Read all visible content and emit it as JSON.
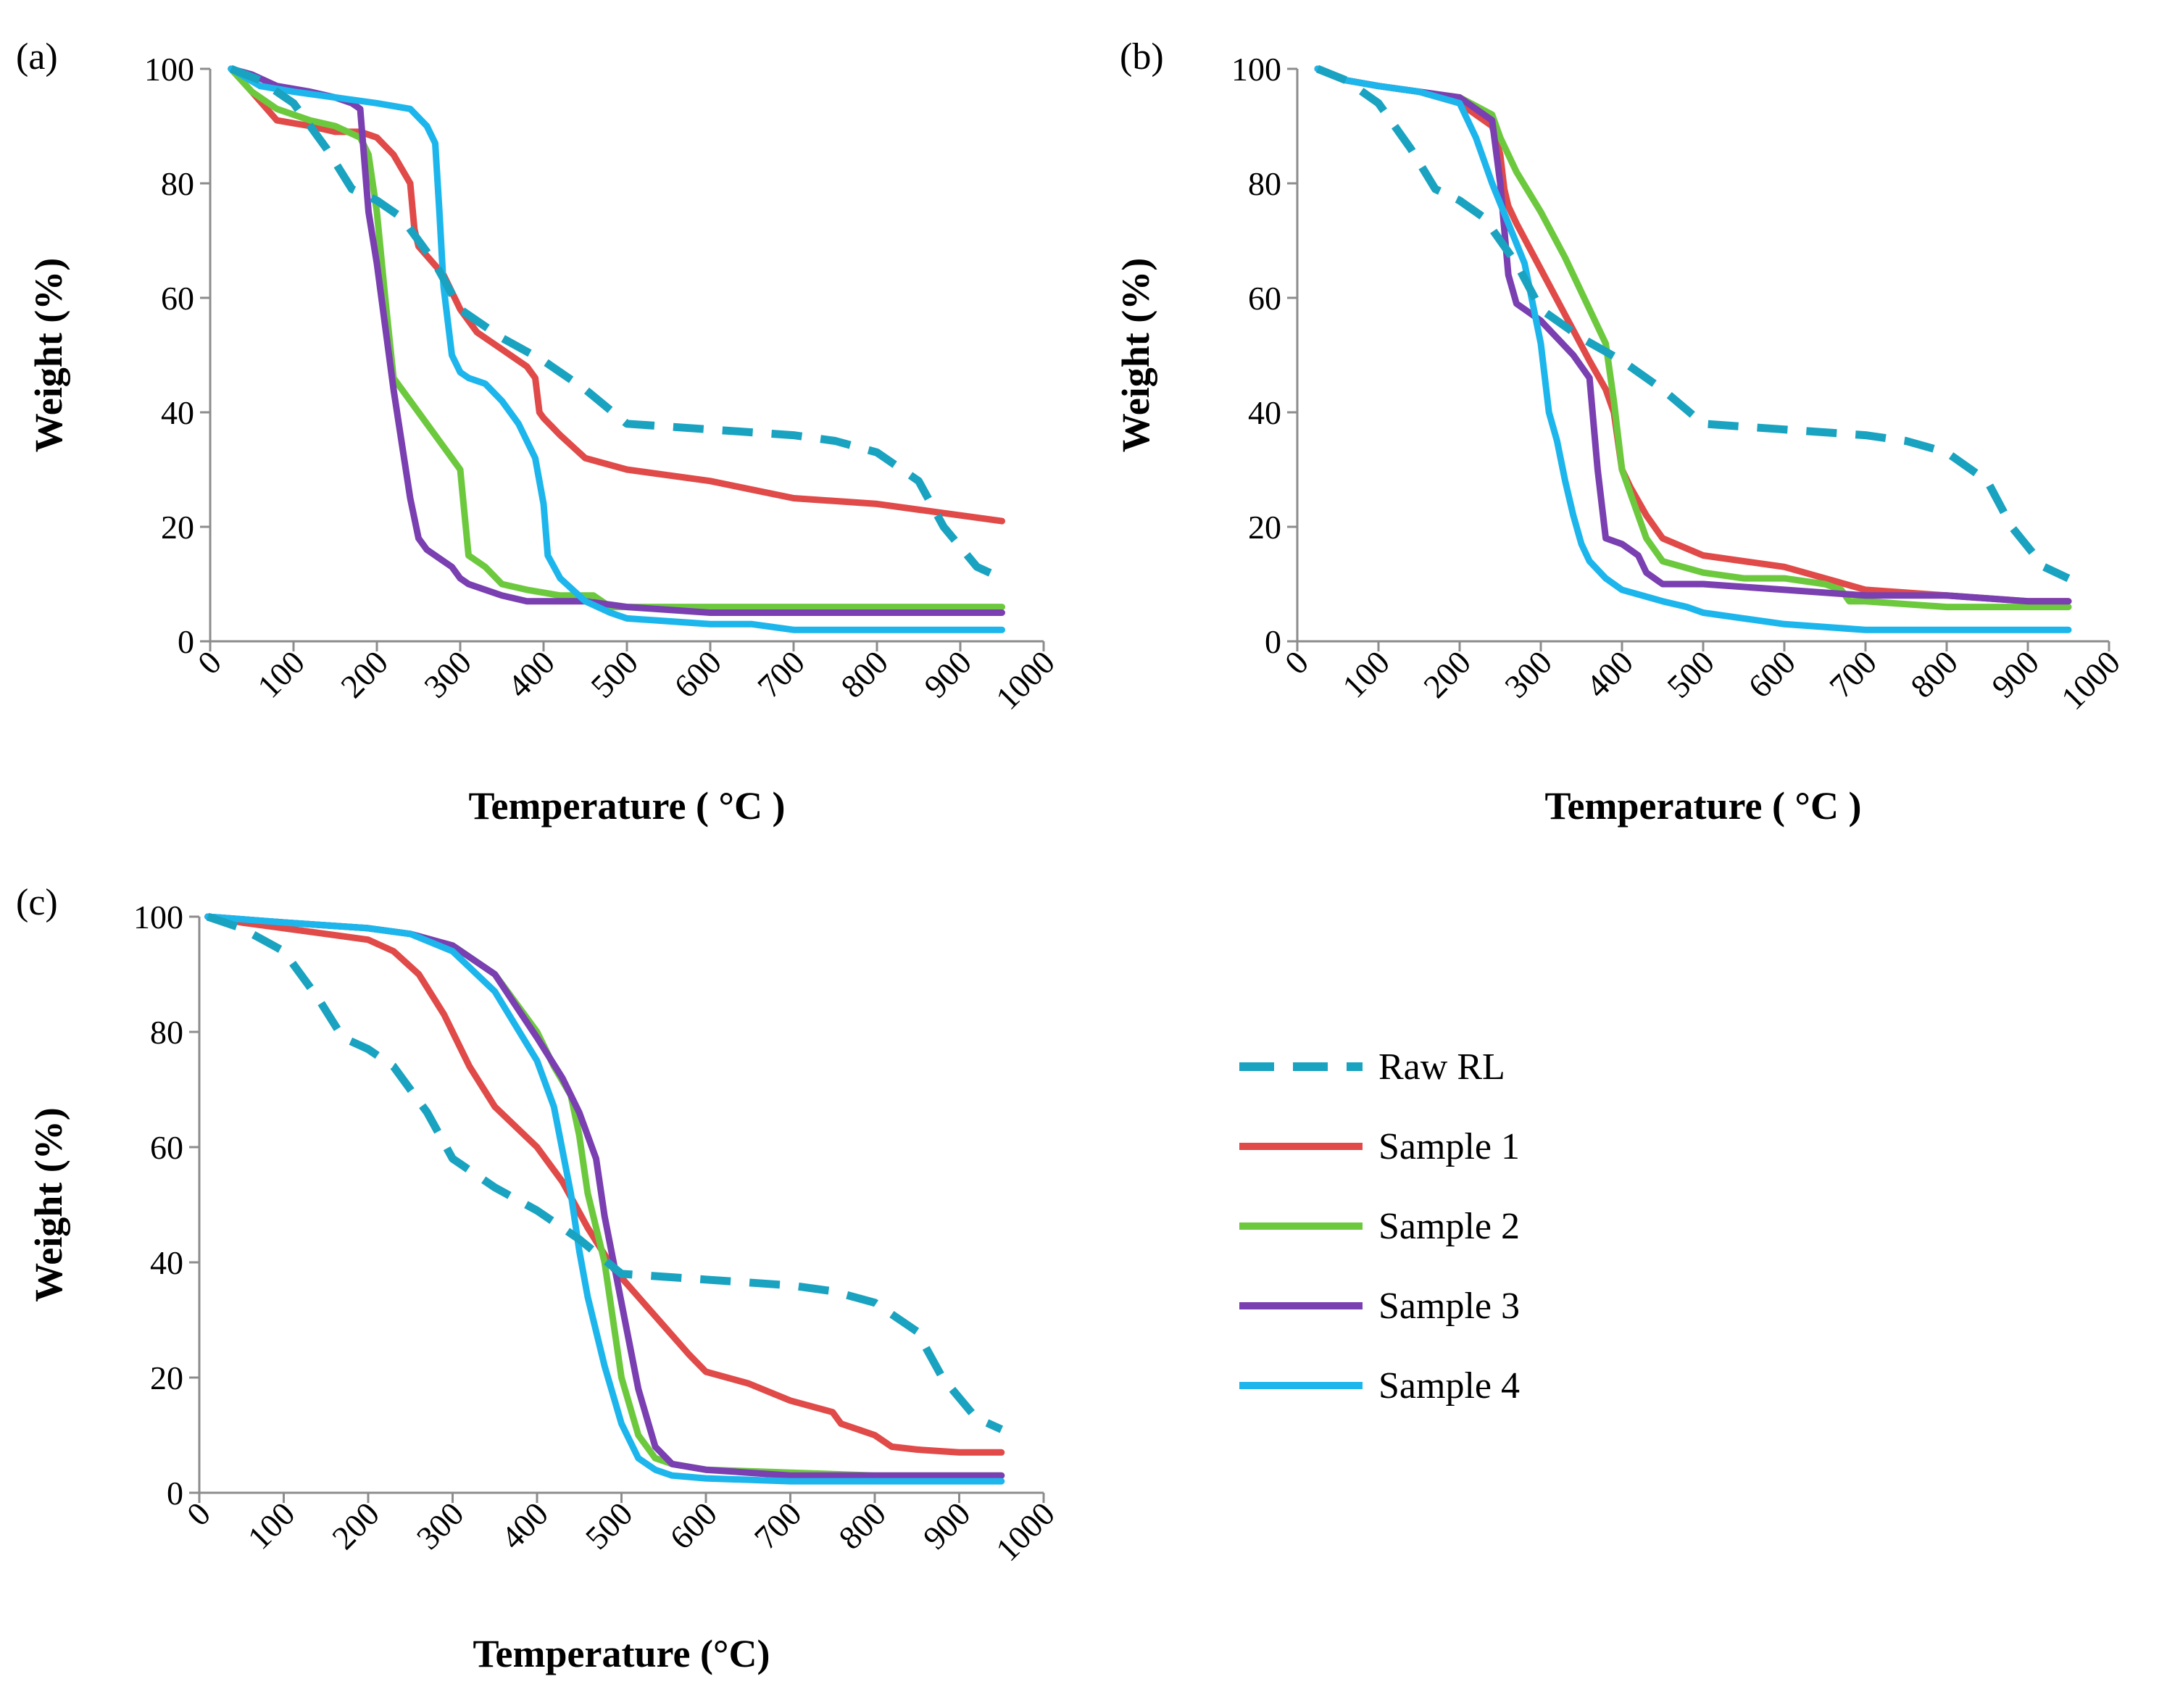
{
  "figure": {
    "legend": [
      {
        "name": "Raw RL",
        "color": "#1aa3c0",
        "dash": true
      },
      {
        "name": "Sample 1",
        "color": "#e04a48",
        "dash": false
      },
      {
        "name": "Sample 2",
        "color": "#6cc93d",
        "dash": false
      },
      {
        "name": "Sample 3",
        "color": "#7a3fb0",
        "dash": false
      },
      {
        "name": "Sample 4",
        "color": "#1cb6ec",
        "dash": false
      }
    ]
  },
  "chart_data": [
    {
      "id": "a",
      "panel_label": "(a)",
      "type": "line",
      "xlabel": "Temperature ( °C )",
      "ylabel": "Weight (%)",
      "xlim": [
        0,
        1000
      ],
      "ylim": [
        0,
        100
      ],
      "xticks": [
        "0",
        "100",
        "200",
        "300",
        "400",
        "500",
        "600",
        "700",
        "800",
        "900",
        "1000"
      ],
      "yticks": [
        "0",
        "20",
        "40",
        "60",
        "80",
        "100"
      ],
      "series": [
        {
          "name": "Raw RL",
          "x": [
            25,
            60,
            100,
            140,
            170,
            200,
            230,
            270,
            300,
            350,
            400,
            450,
            500,
            600,
            700,
            750,
            800,
            850,
            880,
            920,
            950
          ],
          "y": [
            100,
            98,
            94,
            86,
            79,
            77,
            74,
            66,
            58,
            53,
            49,
            44,
            38,
            37,
            36,
            35,
            33,
            28,
            20,
            13,
            11
          ]
        },
        {
          "name": "Sample 1",
          "x": [
            25,
            50,
            80,
            120,
            150,
            180,
            200,
            220,
            240,
            245,
            250,
            280,
            300,
            320,
            350,
            380,
            390,
            395,
            400,
            420,
            450,
            500,
            600,
            700,
            800,
            900,
            950
          ],
          "y": [
            100,
            96,
            91,
            90,
            89,
            89,
            88,
            85,
            80,
            72,
            69,
            64,
            58,
            54,
            51,
            48,
            46,
            40,
            39,
            36,
            32,
            30,
            28,
            25,
            24,
            22,
            21
          ]
        },
        {
          "name": "Sample 2",
          "x": [
            25,
            50,
            80,
            120,
            150,
            180,
            190,
            200,
            210,
            220,
            240,
            260,
            280,
            300,
            310,
            330,
            350,
            380,
            420,
            460,
            470,
            480,
            500,
            600,
            700,
            800,
            900,
            950
          ],
          "y": [
            100,
            96,
            93,
            91,
            90,
            88,
            85,
            75,
            60,
            46,
            42,
            38,
            34,
            30,
            15,
            13,
            10,
            9,
            8,
            8,
            7,
            6,
            6,
            6,
            6,
            6,
            6,
            6
          ]
        },
        {
          "name": "Sample 3",
          "x": [
            25,
            50,
            80,
            120,
            150,
            170,
            180,
            190,
            200,
            210,
            220,
            240,
            250,
            260,
            280,
            290,
            300,
            310,
            330,
            350,
            380,
            400,
            450,
            500,
            600,
            700,
            800,
            900,
            950
          ],
          "y": [
            100,
            99,
            97,
            96,
            95,
            94,
            93,
            75,
            66,
            55,
            44,
            25,
            18,
            16,
            14,
            13,
            11,
            10,
            9,
            8,
            7,
            7,
            7,
            6,
            5,
            5,
            5,
            5,
            5
          ]
        },
        {
          "name": "Sample 4",
          "x": [
            25,
            60,
            100,
            150,
            200,
            240,
            260,
            270,
            275,
            280,
            290,
            300,
            310,
            330,
            350,
            370,
            390,
            400,
            405,
            420,
            450,
            480,
            500,
            600,
            650,
            700,
            750,
            800,
            900,
            950
          ],
          "y": [
            100,
            97,
            96,
            95,
            94,
            93,
            90,
            87,
            75,
            62,
            50,
            47,
            46,
            45,
            42,
            38,
            32,
            24,
            15,
            11,
            7,
            5,
            4,
            3,
            3,
            2,
            2,
            2,
            2,
            2
          ]
        }
      ]
    },
    {
      "id": "b",
      "panel_label": "(b)",
      "type": "line",
      "xlabel": "Temperature ( °C )",
      "ylabel": "Weight (%)",
      "xlim": [
        0,
        1000
      ],
      "ylim": [
        0,
        100
      ],
      "xticks": [
        "0",
        "100",
        "200",
        "300",
        "400",
        "500",
        "600",
        "700",
        "800",
        "900",
        "1000"
      ],
      "yticks": [
        "0",
        "20",
        "40",
        "60",
        "80",
        "100"
      ],
      "series": [
        {
          "name": "Raw RL",
          "x": [
            25,
            60,
            100,
            140,
            170,
            200,
            230,
            270,
            300,
            350,
            400,
            450,
            500,
            600,
            700,
            750,
            800,
            850,
            880,
            920,
            950
          ],
          "y": [
            100,
            98,
            94,
            86,
            79,
            77,
            74,
            66,
            58,
            53,
            49,
            44,
            38,
            37,
            36,
            35,
            33,
            28,
            20,
            13,
            11
          ]
        },
        {
          "name": "Sample 1",
          "x": [
            25,
            60,
            100,
            150,
            200,
            240,
            250,
            255,
            260,
            270,
            300,
            330,
            360,
            380,
            390,
            400,
            410,
            430,
            450,
            500,
            550,
            600,
            650,
            700,
            800,
            900,
            950
          ],
          "y": [
            100,
            98,
            97,
            96,
            94,
            90,
            85,
            79,
            76,
            73,
            65,
            57,
            49,
            44,
            40,
            30,
            27,
            22,
            18,
            15,
            14,
            13,
            11,
            9,
            8,
            7,
            7
          ]
        },
        {
          "name": "Sample 2",
          "x": [
            25,
            60,
            100,
            150,
            200,
            240,
            250,
            270,
            300,
            330,
            360,
            380,
            390,
            400,
            420,
            430,
            450,
            500,
            550,
            600,
            650,
            670,
            680,
            700,
            800,
            900,
            950
          ],
          "y": [
            100,
            98,
            97,
            96,
            95,
            92,
            88,
            82,
            75,
            67,
            58,
            52,
            42,
            30,
            22,
            18,
            14,
            12,
            11,
            11,
            10,
            9,
            7,
            7,
            6,
            6,
            6
          ]
        },
        {
          "name": "Sample 3",
          "x": [
            25,
            60,
            100,
            150,
            200,
            240,
            250,
            255,
            260,
            270,
            280,
            300,
            320,
            340,
            360,
            370,
            380,
            400,
            410,
            420,
            430,
            450,
            500,
            600,
            700,
            800,
            900,
            950
          ],
          "y": [
            100,
            98,
            97,
            96,
            95,
            91,
            80,
            72,
            64,
            59,
            58,
            56,
            53,
            50,
            46,
            30,
            18,
            17,
            16,
            15,
            12,
            10,
            10,
            9,
            8,
            8,
            7,
            7
          ]
        },
        {
          "name": "Sample 4",
          "x": [
            25,
            60,
            100,
            150,
            200,
            220,
            240,
            260,
            280,
            300,
            310,
            320,
            330,
            340,
            350,
            360,
            380,
            400,
            450,
            480,
            500,
            550,
            600,
            700,
            800,
            900,
            950
          ],
          "y": [
            100,
            98,
            97,
            96,
            94,
            88,
            80,
            73,
            66,
            52,
            40,
            35,
            28,
            22,
            17,
            14,
            11,
            9,
            7,
            6,
            5,
            4,
            3,
            2,
            2,
            2,
            2
          ]
        }
      ]
    },
    {
      "id": "c",
      "panel_label": "(c)",
      "type": "line",
      "xlabel": "Temperature (°C)",
      "ylabel": "Weight (%)",
      "xlim": [
        0,
        1000
      ],
      "ylim": [
        0,
        100
      ],
      "xticks": [
        "0",
        "100",
        "200",
        "300",
        "400",
        "500",
        "600",
        "700",
        "800",
        "900",
        "1000"
      ],
      "yticks": [
        "0",
        "20",
        "40",
        "60",
        "80",
        "100"
      ],
      "series": [
        {
          "name": "Raw RL",
          "x": [
            10,
            50,
            100,
            140,
            170,
            200,
            230,
            270,
            300,
            350,
            400,
            450,
            500,
            600,
            700,
            750,
            800,
            850,
            880,
            920,
            950
          ],
          "y": [
            100,
            98,
            94,
            86,
            79,
            77,
            74,
            66,
            58,
            53,
            49,
            44,
            38,
            37,
            36,
            35,
            33,
            28,
            20,
            13,
            11
          ]
        },
        {
          "name": "Sample 1",
          "x": [
            10,
            50,
            100,
            150,
            200,
            230,
            260,
            290,
            320,
            350,
            400,
            430,
            460,
            490,
            520,
            550,
            580,
            600,
            650,
            700,
            750,
            760,
            780,
            800,
            820,
            850,
            900,
            950
          ],
          "y": [
            100,
            99,
            98,
            97,
            96,
            94,
            90,
            83,
            74,
            67,
            60,
            54,
            46,
            39,
            34,
            29,
            24,
            21,
            19,
            16,
            14,
            12,
            11,
            10,
            8,
            7.5,
            7,
            7
          ]
        },
        {
          "name": "Sample 2",
          "x": [
            10,
            100,
            200,
            250,
            300,
            350,
            400,
            420,
            440,
            450,
            460,
            480,
            500,
            520,
            540,
            560,
            600,
            700,
            800,
            900,
            950
          ],
          "y": [
            100,
            99,
            98,
            97,
            95,
            90,
            80,
            74,
            69,
            62,
            52,
            40,
            20,
            10,
            6,
            5,
            4,
            3.5,
            3,
            3,
            3
          ]
        },
        {
          "name": "Sample 3",
          "x": [
            10,
            100,
            200,
            250,
            300,
            350,
            400,
            430,
            450,
            470,
            480,
            500,
            520,
            540,
            560,
            600,
            700,
            800,
            900,
            950
          ],
          "y": [
            100,
            99,
            98,
            97,
            95,
            90,
            79,
            72,
            66,
            58,
            48,
            33,
            18,
            8,
            5,
            4,
            3,
            3,
            3,
            3
          ]
        },
        {
          "name": "Sample 4",
          "x": [
            10,
            100,
            200,
            250,
            300,
            350,
            400,
            420,
            440,
            450,
            460,
            480,
            500,
            520,
            540,
            560,
            600,
            700,
            800,
            900,
            950
          ],
          "y": [
            100,
            99,
            98,
            97,
            94,
            87,
            75,
            67,
            52,
            42,
            34,
            22,
            12,
            6,
            4,
            3,
            2.5,
            2,
            2,
            2,
            2
          ]
        }
      ]
    }
  ]
}
